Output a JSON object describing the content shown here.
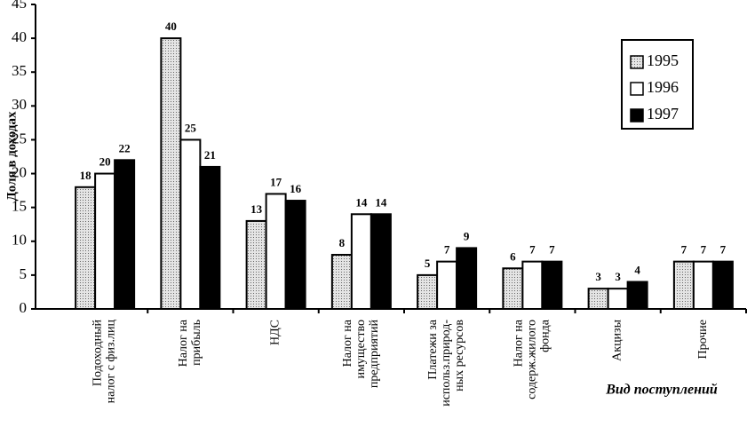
{
  "chart_data": {
    "type": "bar",
    "y_label": "Доля в доходах",
    "x_label": "Вид поступлений",
    "categories": [
      "Подоходный\nналог с физ.лиц",
      "Налог на\nприбыль",
      "НДС",
      "Налог на\nимущество\nпредприятий",
      "Платежи за\nиспольз.природ-\nных ресурсов",
      "Налог на\nсодерж.жилого\nфонда",
      "Акцизы",
      "Прочие"
    ],
    "series": [
      {
        "name": "1995",
        "color": "#c8c8c8",
        "values": [
          18,
          40,
          13,
          8,
          5,
          6,
          3,
          7
        ]
      },
      {
        "name": "1996",
        "color": "#ffffff",
        "values": [
          20,
          25,
          17,
          14,
          7,
          7,
          3,
          7
        ]
      },
      {
        "name": "1997",
        "color": "#000000",
        "values": [
          22,
          21,
          16,
          14,
          9,
          7,
          4,
          7
        ]
      }
    ],
    "ylim": [
      0,
      45
    ],
    "yticks": [
      0,
      5,
      10,
      15,
      20,
      25,
      30,
      35,
      40,
      45
    ],
    "legend": "upper right"
  }
}
